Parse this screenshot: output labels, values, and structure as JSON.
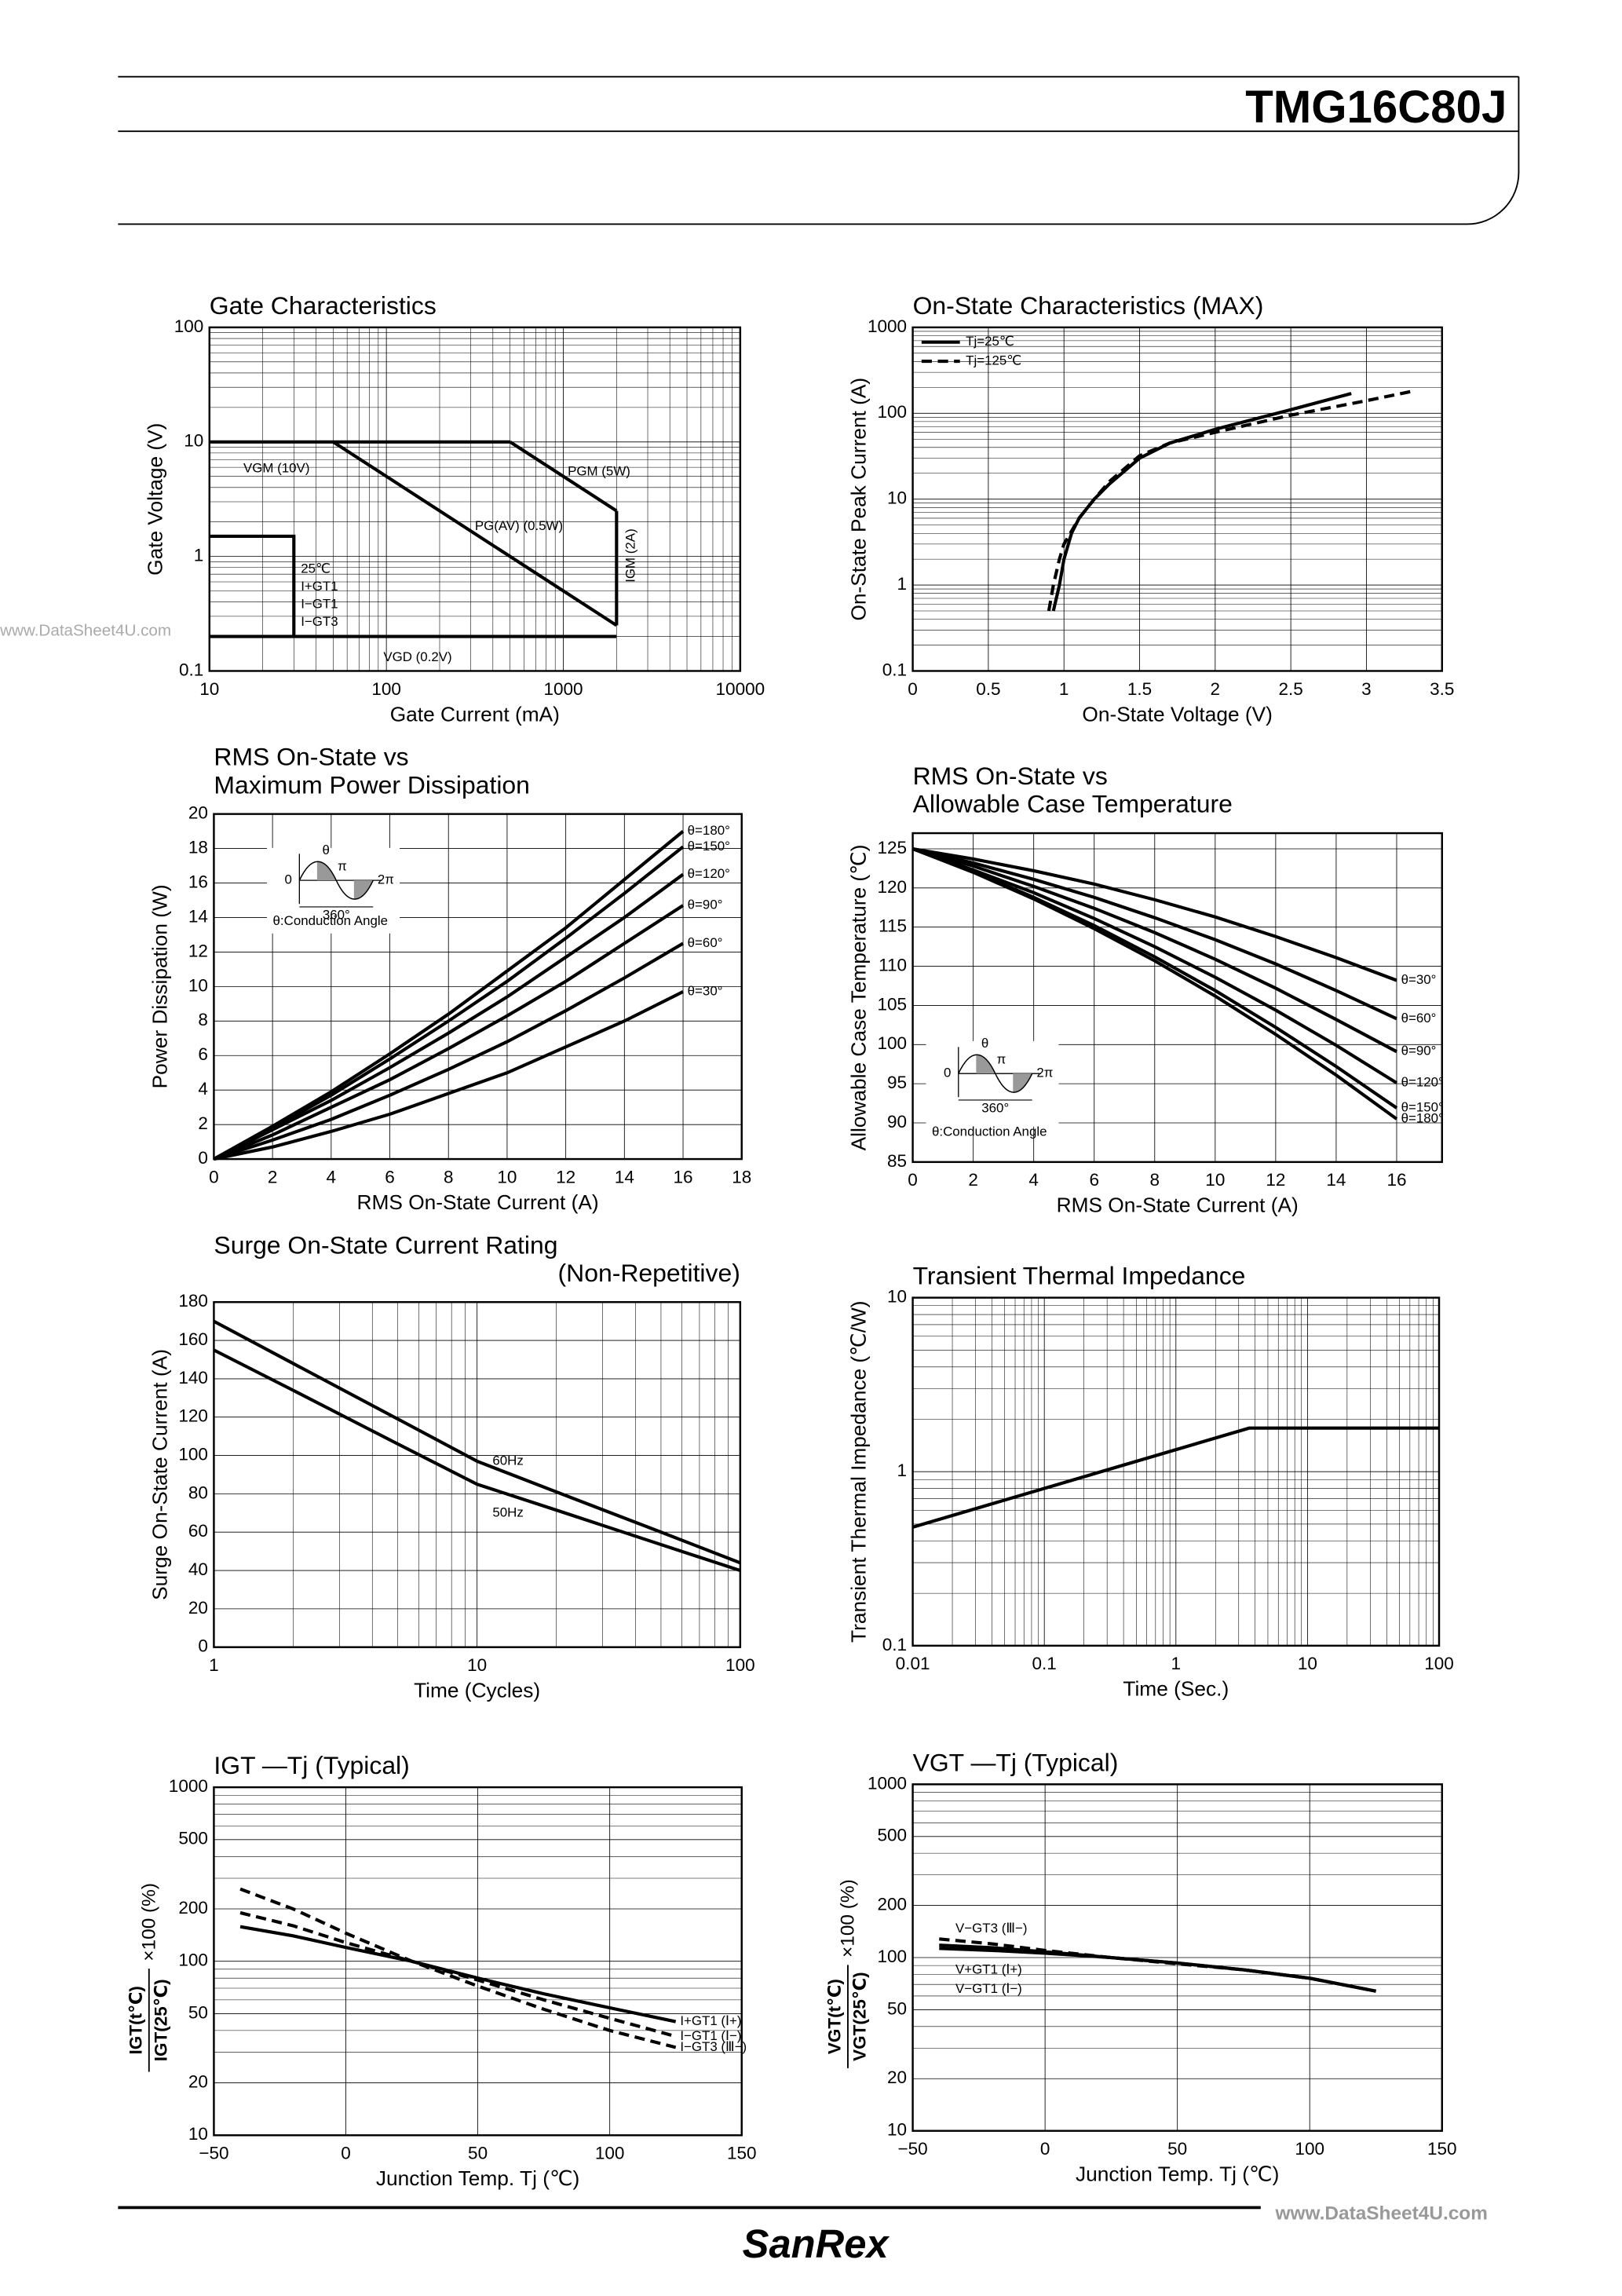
{
  "header": {
    "part_number": "TMG16C80J"
  },
  "footer": {
    "brand": "SanRex",
    "watermark": "www.DataSheet4U.com"
  },
  "chart_data": [
    {
      "type": "line",
      "title": "Gate Characteristics",
      "xlabel": "Gate Current (mA)",
      "ylabel": "Gate Voltage (V)",
      "xlog": true,
      "ylog": true,
      "grid": true,
      "xlim": [
        10,
        10000
      ],
      "ylim": [
        0.1,
        100
      ],
      "xticks": [
        10,
        100,
        1000,
        10000
      ],
      "yticks": [
        0.1,
        1,
        10,
        100
      ],
      "series": [
        {
          "name": "VGM (10V)",
          "color": "#000000",
          "x": [
            10,
            500
          ],
          "values": [
            10,
            10
          ]
        },
        {
          "name": "PGM (5W)",
          "color": "#000000",
          "x": [
            500,
            2000
          ],
          "values": [
            10,
            2.5
          ]
        },
        {
          "name": "IGM (2A)",
          "color": "#000000",
          "x": [
            2000,
            2000
          ],
          "values": [
            2.5,
            0.25
          ]
        },
        {
          "name": "PG(AV) (0.5W)",
          "color": "#000000",
          "x": [
            50,
            2000
          ],
          "values": [
            10,
            0.25
          ]
        },
        {
          "name": "VGD (0.2V)",
          "color": "#000000",
          "x": [
            10,
            2000
          ],
          "values": [
            0.2,
            0.2
          ]
        },
        {
          "name": "25℃",
          "color": "#000000",
          "x": [
            10,
            30,
            30
          ],
          "values": [
            1.5,
            1.5,
            0.2
          ]
        }
      ],
      "annotations": [
        "I+GT1",
        "I−GT1",
        "I−GT3"
      ]
    },
    {
      "type": "line",
      "title": "On-State Characteristics (MAX)",
      "xlabel": "On-State Voltage (V)",
      "ylabel": "On-State Peak Current (A)",
      "xlog": false,
      "ylog": true,
      "grid": true,
      "xlim": [
        0,
        3.5
      ],
      "ylim": [
        0.1,
        1000
      ],
      "xticks": [
        0,
        0.5,
        1,
        1.5,
        2,
        2.5,
        3,
        3.5
      ],
      "yticks": [
        0.1,
        1,
        10,
        100,
        1000
      ],
      "legend": "upper left",
      "series": [
        {
          "name": "Tj=25℃",
          "color": "#000000",
          "dash": false,
          "x": [
            0.93,
            0.97,
            1.0,
            1.05,
            1.1,
            1.2,
            1.3,
            1.5,
            1.7,
            2.0,
            2.5,
            2.9
          ],
          "values": [
            0.5,
            1,
            2,
            4,
            6,
            10,
            15,
            30,
            45,
            65,
            110,
            170
          ]
        },
        {
          "name": "Tj=125℃",
          "color": "#000000",
          "dash": true,
          "x": [
            0.9,
            0.93,
            0.97,
            1.0,
            1.1,
            1.2,
            1.3,
            1.5,
            1.7,
            2.0,
            2.5,
            3.0,
            3.3
          ],
          "values": [
            0.5,
            1,
            2,
            3,
            6,
            10,
            16,
            32,
            45,
            60,
            95,
            140,
            180
          ]
        }
      ]
    },
    {
      "type": "line",
      "title": "RMS On-State vs",
      "subtitle": "Maximum Power Dissipation",
      "xlabel": "RMS On-State Current (A)",
      "ylabel": "Power Dissipation (W)",
      "xlog": false,
      "ylog": false,
      "grid": true,
      "xlim": [
        0,
        18
      ],
      "ylim": [
        0,
        20
      ],
      "xticks": [
        0,
        2,
        4,
        6,
        8,
        10,
        12,
        14,
        16,
        18
      ],
      "yticks": [
        0,
        2,
        4,
        6,
        8,
        10,
        12,
        14,
        16,
        18,
        20
      ],
      "inset": {
        "labels": [
          "0",
          "θ",
          "π",
          "2π",
          "360°"
        ],
        "caption": "θ:Conduction Angle"
      },
      "series": [
        {
          "name": "θ=180°",
          "color": "#000000",
          "x": [
            0,
            2,
            4,
            6,
            8,
            10,
            12,
            14,
            16
          ],
          "values": [
            0,
            1.9,
            3.9,
            6.1,
            8.4,
            10.9,
            13.4,
            16.2,
            19.0
          ]
        },
        {
          "name": "θ=150°",
          "color": "#000000",
          "x": [
            0,
            2,
            4,
            6,
            8,
            10,
            12,
            14,
            16
          ],
          "values": [
            0,
            1.8,
            3.7,
            5.8,
            8.0,
            10.3,
            12.8,
            15.4,
            18.1
          ]
        },
        {
          "name": "θ=120°",
          "color": "#000000",
          "x": [
            0,
            2,
            4,
            6,
            8,
            10,
            12,
            14,
            16
          ],
          "values": [
            0,
            1.7,
            3.4,
            5.3,
            7.3,
            9.4,
            11.7,
            14.0,
            16.5
          ]
        },
        {
          "name": "θ=90°",
          "color": "#000000",
          "x": [
            0,
            2,
            4,
            6,
            8,
            10,
            12,
            14,
            16
          ],
          "values": [
            0,
            1.4,
            3.0,
            4.6,
            6.4,
            8.3,
            10.3,
            12.5,
            14.7
          ]
        },
        {
          "name": "θ=60°",
          "color": "#000000",
          "x": [
            0,
            2,
            4,
            6,
            8,
            10,
            12,
            14,
            16
          ],
          "values": [
            0,
            1.1,
            2.3,
            3.7,
            5.2,
            6.8,
            8.6,
            10.5,
            12.5
          ]
        },
        {
          "name": "θ=30°",
          "color": "#000000",
          "x": [
            0,
            2,
            4,
            6,
            8,
            10,
            12,
            14,
            16
          ],
          "values": [
            0,
            0.7,
            1.6,
            2.6,
            3.8,
            5.0,
            6.5,
            8.0,
            9.7
          ]
        }
      ]
    },
    {
      "type": "line",
      "title": "RMS On-State vs",
      "subtitle": "Allowable Case Temperature",
      "xlabel": "RMS On-State Current (A)",
      "ylabel": "Allowable Case Temperature (℃)",
      "xlog": false,
      "ylog": false,
      "grid": true,
      "xlim": [
        0,
        17.5
      ],
      "ylim": [
        85,
        127
      ],
      "xticks": [
        0,
        2,
        4,
        6,
        8,
        10,
        12,
        14,
        16
      ],
      "yticks": [
        85,
        90,
        95,
        100,
        105,
        110,
        115,
        120,
        125
      ],
      "inset": {
        "labels": [
          "0",
          "θ",
          "π",
          "2π",
          "360°"
        ],
        "caption": "θ:Conduction Angle"
      },
      "series": [
        {
          "name": "θ=30°",
          "color": "#000000",
          "x": [
            0,
            2,
            4,
            6,
            8,
            10,
            12,
            14,
            16
          ],
          "values": [
            125,
            123.7,
            122.2,
            120.5,
            118.5,
            116.3,
            113.8,
            111.1,
            108.2
          ]
        },
        {
          "name": "θ=60°",
          "color": "#000000",
          "x": [
            0,
            2,
            4,
            6,
            8,
            10,
            12,
            14,
            16
          ],
          "values": [
            125,
            123.2,
            121.1,
            118.8,
            116.2,
            113.4,
            110.3,
            106.9,
            103.3
          ]
        },
        {
          "name": "θ=90°",
          "color": "#000000",
          "x": [
            0,
            2,
            4,
            6,
            8,
            10,
            12,
            14,
            16
          ],
          "values": [
            125,
            122.8,
            120.2,
            117.4,
            114.3,
            110.9,
            107.2,
            103.2,
            99.1
          ]
        },
        {
          "name": "θ=120°",
          "color": "#000000",
          "x": [
            0,
            2,
            4,
            6,
            8,
            10,
            12,
            14,
            16
          ],
          "values": [
            125,
            122.3,
            119.4,
            116.1,
            112.5,
            108.6,
            104.4,
            99.9,
            95.1
          ]
        },
        {
          "name": "θ=150°",
          "color": "#000000",
          "x": [
            0,
            2,
            4,
            6,
            8,
            10,
            12,
            14,
            16
          ],
          "values": [
            125,
            122.1,
            118.8,
            115.2,
            111.2,
            106.9,
            102.2,
            97.2,
            91.9
          ]
        },
        {
          "name": "θ=180°",
          "color": "#000000",
          "x": [
            0,
            2,
            4,
            6,
            8,
            10,
            12,
            14,
            16
          ],
          "values": [
            125,
            122.0,
            118.6,
            114.8,
            110.7,
            106.2,
            101.3,
            96.1,
            90.5
          ]
        }
      ]
    },
    {
      "type": "line",
      "title": "Surge On-State Current Rating",
      "subtitle": "(Non-Repetitive)",
      "xlabel": "Time (Cycles)",
      "ylabel": "Surge On-State Current (A)",
      "xlog": true,
      "ylog": false,
      "grid": true,
      "xlim": [
        1,
        100
      ],
      "ylim": [
        0,
        180
      ],
      "xticks": [
        1,
        10,
        100
      ],
      "yticks": [
        0,
        20,
        40,
        60,
        80,
        100,
        120,
        140,
        160,
        180
      ],
      "series": [
        {
          "name": "60Hz",
          "color": "#000000",
          "x": [
            1,
            2,
            5,
            10,
            20,
            50,
            100
          ],
          "values": [
            170,
            148,
            119,
            97,
            81,
            60,
            44
          ]
        },
        {
          "name": "50Hz",
          "color": "#000000",
          "x": [
            1,
            2,
            5,
            10,
            20,
            50,
            100
          ],
          "values": [
            155,
            134,
            106,
            85,
            71.5,
            53.5,
            40
          ]
        }
      ]
    },
    {
      "type": "line",
      "title": "Transient Thermal Impedance",
      "xlabel": "Time (Sec.)",
      "ylabel": "Transient Thermal Impedance (℃/W)",
      "xlog": true,
      "ylog": true,
      "grid": true,
      "xlim": [
        0.01,
        100
      ],
      "ylim": [
        0.1,
        10
      ],
      "xticks": [
        0.01,
        0.1,
        1,
        10,
        100
      ],
      "yticks": [
        0.1,
        1,
        10
      ],
      "series": [
        {
          "color": "#000000",
          "x": [
            0.01,
            3.6,
            100
          ],
          "values": [
            0.48,
            1.78,
            1.78
          ]
        }
      ]
    },
    {
      "type": "line",
      "title": "IGT —Tj (Typical)",
      "xlabel": "Junction Temp. Tj (℃)",
      "ylabel": {
        "numerator": "IGT(t℃)",
        "denominator": "IGT(25℃)",
        "factor": "×100 (%)"
      },
      "xlog": false,
      "ylog": true,
      "grid": true,
      "xlim": [
        -50,
        150
      ],
      "ylim": [
        10,
        1000
      ],
      "xticks": [
        {
          "value": -50,
          "label": "−50"
        },
        0,
        50,
        100,
        150
      ],
      "yticks": [
        10,
        20,
        50,
        100,
        200,
        500,
        1000
      ],
      "series": [
        {
          "name": "I+GT1 (Ⅰ+)",
          "color": "#000000",
          "dash": false,
          "x": [
            -40,
            -20,
            0,
            25,
            50,
            75,
            100,
            125
          ],
          "values": [
            158,
            140,
            120,
            100,
            80,
            65,
            54,
            45
          ]
        },
        {
          "name": "I−GT1 (Ⅰ−)",
          "color": "#000000",
          "dash": true,
          "x": [
            -40,
            -20,
            0,
            25,
            50,
            75,
            100,
            125
          ],
          "values": [
            190,
            160,
            128,
            100,
            78,
            60,
            47,
            37
          ]
        },
        {
          "name": "I−GT3 (Ⅲ−)",
          "color": "#000000",
          "dash": true,
          "x": [
            -40,
            -20,
            0,
            25,
            50,
            75,
            100,
            125
          ],
          "values": [
            260,
            200,
            145,
            100,
            72,
            53,
            40,
            32
          ]
        }
      ]
    },
    {
      "type": "line",
      "title": "VGT —Tj (Typical)",
      "xlabel": "Junction Temp. Tj (℃)",
      "ylabel": {
        "numerator": "VGT(t℃)",
        "denominator": "VGT(25℃)",
        "factor": "×100 (%)"
      },
      "xlog": false,
      "ylog": true,
      "grid": true,
      "xlim": [
        -50,
        150
      ],
      "ylim": [
        10,
        1000
      ],
      "xticks": [
        {
          "value": -50,
          "label": "−50"
        },
        0,
        50,
        100,
        150
      ],
      "yticks": [
        10,
        20,
        50,
        100,
        200,
        500,
        1000
      ],
      "series": [
        {
          "name": "V−GT3 (Ⅲ−)",
          "color": "#000000",
          "dash": true,
          "x": [
            -40,
            -20,
            0,
            25,
            50,
            75,
            100,
            125
          ],
          "values": [
            128,
            120,
            110,
            100,
            92,
            85,
            76,
            64
          ]
        },
        {
          "name": "V+GT1 (Ⅰ+)",
          "color": "#000000",
          "dash": false,
          "x": [
            -40,
            -20,
            0,
            25,
            50,
            75,
            100,
            125
          ],
          "values": [
            118,
            114,
            108,
            100,
            93,
            85,
            76,
            64
          ]
        },
        {
          "name": "V−GT1 (Ⅰ−)",
          "color": "#000000",
          "dash": false,
          "x": [
            -40,
            -20,
            0,
            25,
            50,
            75,
            100,
            125
          ],
          "values": [
            113,
            110,
            106,
            100,
            93,
            85,
            76,
            64
          ]
        }
      ]
    }
  ]
}
